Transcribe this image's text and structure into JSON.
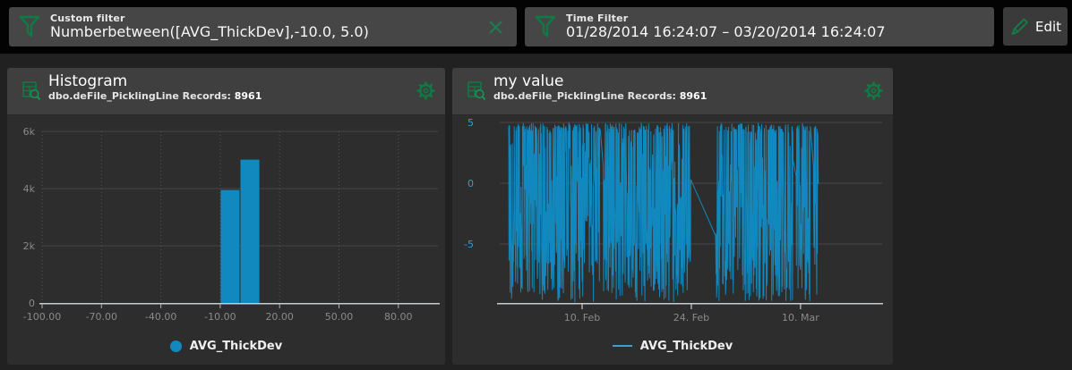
{
  "toolbar": {
    "custom_filter": {
      "label": "Custom filter",
      "value": "Numberbetween([AVG_ThickDev],-10.0, 5.0)"
    },
    "time_filter": {
      "label": "Time Filter",
      "value": "01/28/2014 16:24:07 – 03/20/2014 16:24:07"
    },
    "edit_label": "Edit"
  },
  "colors": {
    "accent_green": "#0d7c44",
    "series_blue": "#1289be",
    "axis_label_blue": "#2f9fd6",
    "panel_header_bg": "#3f3f3f",
    "panel_body_bg": "#2d2d2d",
    "topbar_bg": "#030303",
    "filter_box_bg": "#464646"
  },
  "chart_data": [
    {
      "type": "bar",
      "title": "Histogram",
      "source_label": "dbo.deFile_PicklingLine Records:",
      "records": "8961",
      "series_name": "AVG_ThickDev",
      "bars": [
        {
          "x0": -10,
          "x1": 0,
          "count": 3950
        },
        {
          "x0": 0,
          "x1": 10,
          "count": 5011
        }
      ],
      "x_tick_values": [
        -100,
        -70,
        -40,
        -10,
        20,
        50,
        80
      ],
      "x_tick_labels": [
        "-100.00",
        "-70.00",
        "-40.00",
        "-10.00",
        "20.00",
        "50.00",
        "80.00"
      ],
      "xlim": [
        -100,
        100
      ],
      "y_tick_values": [
        0,
        2000,
        4000,
        6000
      ],
      "y_tick_labels": [
        "0",
        "2k",
        "4k",
        "6k"
      ],
      "ylim": [
        0,
        6250
      ],
      "bar_color": "#1289be",
      "grid": "horizontal-solid vertical-dotted",
      "legend_position": "bottom-center"
    },
    {
      "type": "line",
      "title": "my value",
      "source_label": "dbo.deFile_PicklingLine Records:",
      "records": "8961",
      "series_name": "AVG_ThickDev",
      "x_axis_start_date": "Jan 30 2014",
      "x_ticks": [
        {
          "label": "10. Feb",
          "day": 11
        },
        {
          "label": "24. Feb",
          "day": 25
        },
        {
          "label": "10. Mar",
          "day": 39
        }
      ],
      "xlim_days": [
        0.4,
        49.5
      ],
      "y_tick_values": [
        5,
        0,
        -5
      ],
      "y_tick_labels": [
        "5",
        "0",
        "-5"
      ],
      "ylim": [
        -10,
        5.6
      ],
      "value_range": [
        -9.8,
        5
      ],
      "segments": [
        {
          "start_day": 1.6,
          "end_day": 24.95,
          "end_value": 0.3
        },
        {
          "start_day": 28.1,
          "end_day": 41.3,
          "start_value": -4.3
        }
      ],
      "gap_connector": "straight line from 24. Feb (~0) down to 27. Feb (~-4.3)",
      "line_color": "#1289be",
      "grid": "horizontal-solid",
      "legend_position": "bottom-center"
    }
  ]
}
